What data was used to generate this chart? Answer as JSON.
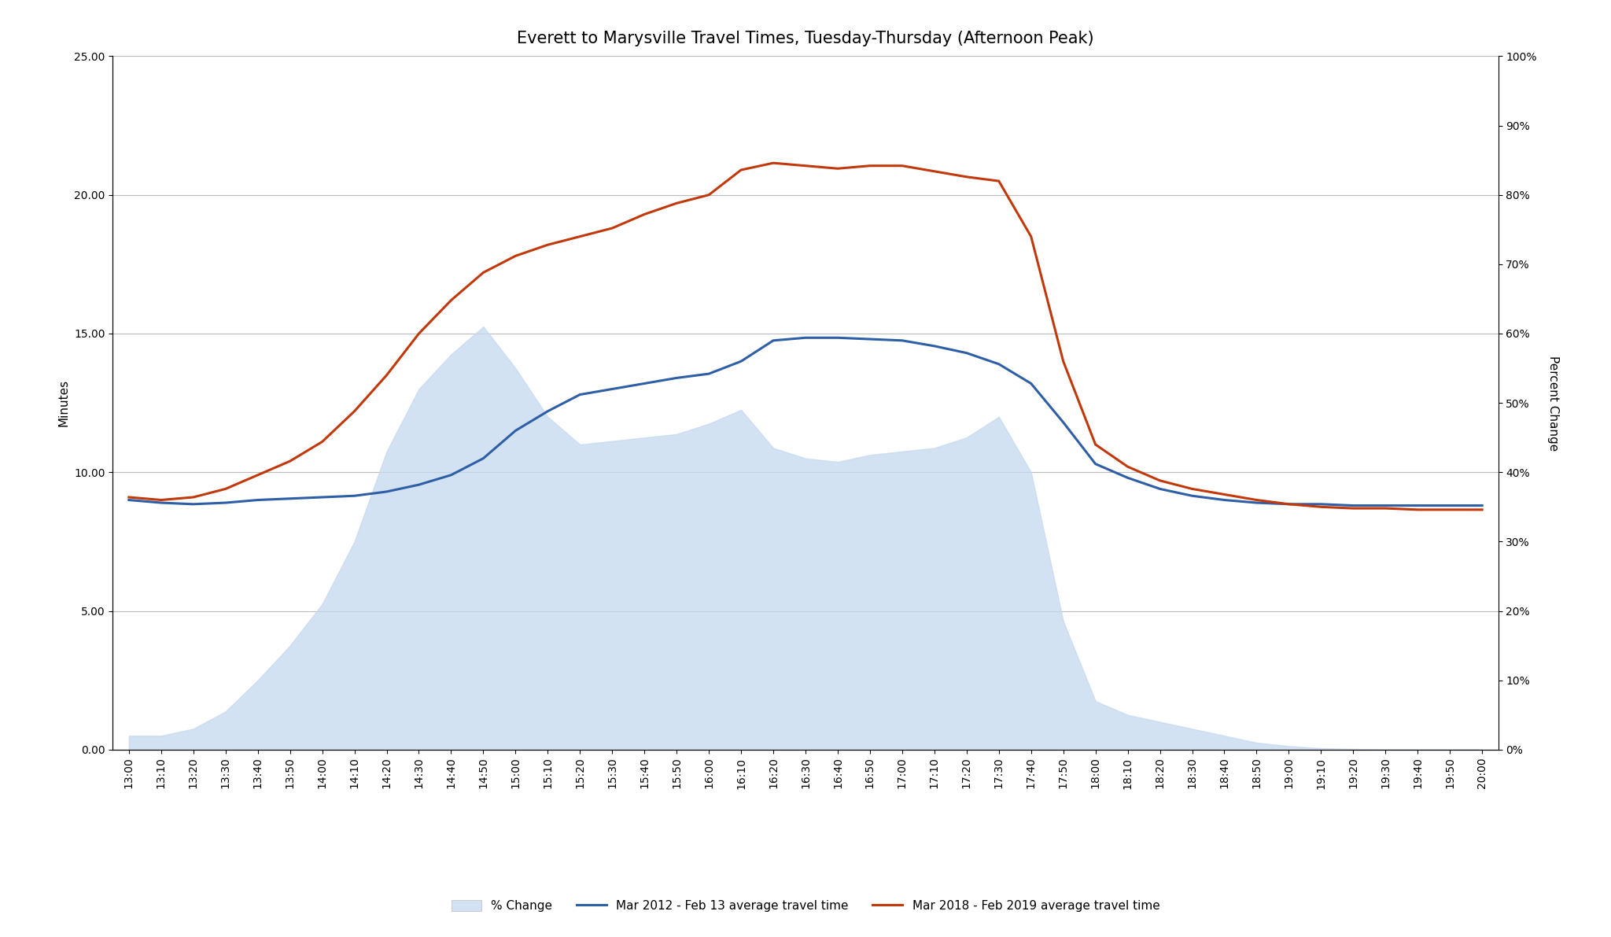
{
  "title": "Everett to Marysville Travel Times, Tuesday-Thursday (Afternoon Peak)",
  "ylabel_left": "Minutes",
  "ylabel_right": "Percent Change",
  "time_labels": [
    "13:00",
    "13:10",
    "13:20",
    "13:30",
    "13:40",
    "13:50",
    "14:00",
    "14:10",
    "14:20",
    "14:30",
    "14:40",
    "14:50",
    "15:00",
    "15:10",
    "15:20",
    "15:30",
    "15:40",
    "15:50",
    "16:00",
    "16:10",
    "16:20",
    "16:30",
    "16:40",
    "16:50",
    "17:00",
    "17:10",
    "17:20",
    "17:30",
    "17:40",
    "17:50",
    "18:00",
    "18:10",
    "18:20",
    "18:30",
    "18:40",
    "18:50",
    "19:00",
    "19:10",
    "19:20",
    "19:30",
    "19:40",
    "19:50",
    "20:00"
  ],
  "mar2012_travel": [
    9.0,
    8.9,
    8.85,
    8.9,
    9.0,
    9.05,
    9.1,
    9.15,
    9.3,
    9.55,
    9.9,
    10.5,
    11.5,
    12.2,
    12.8,
    13.0,
    13.2,
    13.4,
    13.55,
    14.0,
    14.75,
    14.85,
    14.85,
    14.8,
    14.75,
    14.55,
    14.3,
    13.9,
    13.2,
    11.8,
    10.3,
    9.8,
    9.4,
    9.15,
    9.0,
    8.9,
    8.85,
    8.85,
    8.8,
    8.8,
    8.8,
    8.8,
    8.8
  ],
  "mar2018_travel": [
    9.1,
    9.0,
    9.1,
    9.4,
    9.9,
    10.4,
    11.1,
    12.2,
    13.5,
    15.0,
    16.2,
    17.2,
    17.8,
    18.2,
    18.5,
    18.8,
    19.3,
    19.7,
    20.0,
    20.9,
    21.15,
    21.05,
    20.95,
    21.05,
    21.05,
    20.85,
    20.65,
    20.5,
    18.5,
    14.0,
    11.0,
    10.2,
    9.7,
    9.4,
    9.2,
    9.0,
    8.85,
    8.75,
    8.7,
    8.7,
    8.65,
    8.65,
    8.65
  ],
  "pct_change_right": [
    2.0,
    2.0,
    3.0,
    5.5,
    10.0,
    15.0,
    21.0,
    30.0,
    43.0,
    52.0,
    57.0,
    61.0,
    55.0,
    48.0,
    44.0,
    44.5,
    45.0,
    45.5,
    47.0,
    49.0,
    43.5,
    42.0,
    41.5,
    42.5,
    43.0,
    43.5,
    45.0,
    48.0,
    40.0,
    18.5,
    7.0,
    5.0,
    4.0,
    3.0,
    2.0,
    1.0,
    0.5,
    0.2,
    0.1,
    0.0,
    0.0,
    0.0,
    0.0
  ],
  "line_blue_color": "#2E5FA6",
  "line_red_color": "#C1380A",
  "fill_color": "#C5D9F0",
  "fill_alpha": 0.75,
  "ylim_left": [
    0.0,
    25.0
  ],
  "ylim_right": [
    0.0,
    100.0
  ],
  "yticks_left": [
    0.0,
    5.0,
    10.0,
    15.0,
    20.0,
    25.0
  ],
  "yticks_right": [
    0,
    10,
    20,
    30,
    40,
    50,
    60,
    70,
    80,
    90,
    100
  ],
  "grid_color": "#BBBBBB",
  "background_color": "#FFFFFF",
  "title_fontsize": 15,
  "axis_label_fontsize": 11,
  "tick_fontsize": 10,
  "legend_labels": [
    "% Change",
    "Mar 2012 - Feb 13 average travel time",
    "Mar 2018 - Feb 2019 average travel time"
  ],
  "line_width": 2.2
}
